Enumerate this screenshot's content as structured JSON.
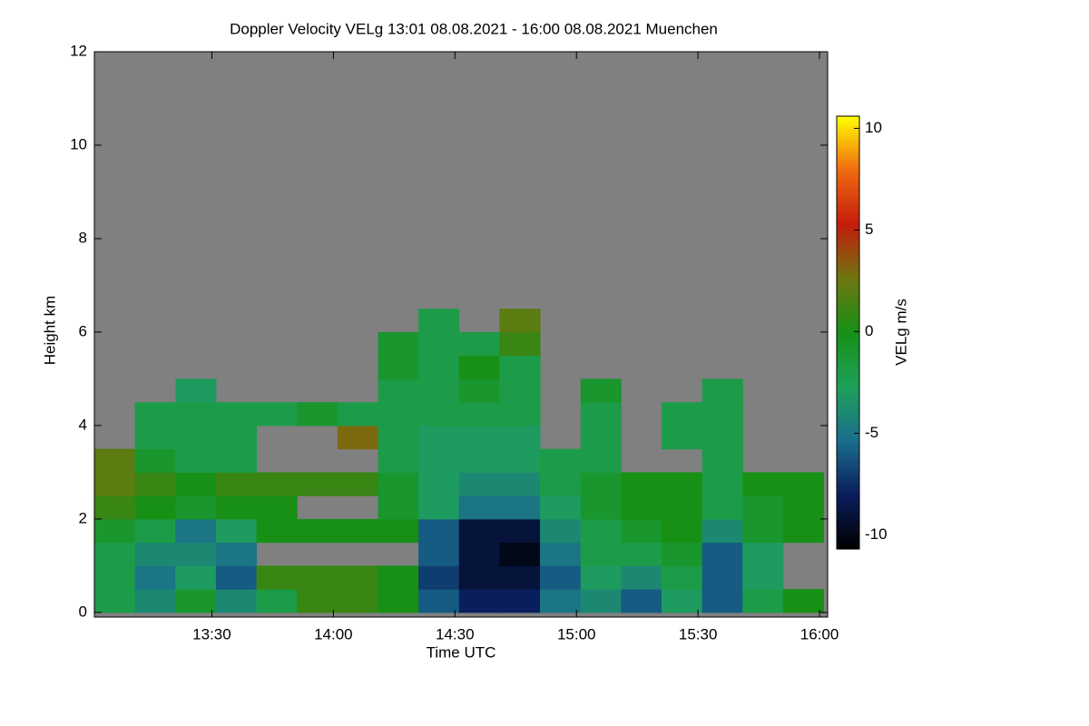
{
  "chart_data": {
    "type": "heatmap",
    "title": "Doppler Velocity VELg   13:01 08.08.2021 - 16:00 08.08.2021 Muenchen",
    "x_label": "Time UTC",
    "y_label": "Height km",
    "colorbar_label": "VELg m/s",
    "xlim": [
      "13:01",
      "16:02"
    ],
    "xticks": [
      "13:30",
      "14:00",
      "14:30",
      "15:00",
      "15:30",
      "16:00"
    ],
    "ylim": [
      -0.1,
      12
    ],
    "yticks": [
      0,
      2,
      4,
      6,
      8,
      10,
      12
    ],
    "zlim": [
      -10.7,
      10.6
    ],
    "zticks": [
      -10,
      -5,
      0,
      5,
      10
    ],
    "colormap": [
      "#000000",
      "#0a1d5c",
      "#1a6e8c",
      "#1ea05a",
      "#169016",
      "#6e7610",
      "#c41c0c",
      "#f06a10",
      "#ffff00"
    ],
    "background": "#808080",
    "x": [
      "13:06",
      "13:16",
      "13:26",
      "13:36",
      "13:46",
      "13:56",
      "14:06",
      "14:16",
      "14:26",
      "14:36",
      "14:46",
      "14:56",
      "15:06",
      "15:16",
      "15:26",
      "15:36",
      "15:46",
      "15:56"
    ],
    "y": [
      0.25,
      0.75,
      1.25,
      1.75,
      2.25,
      2.75,
      3.25,
      3.75,
      4.25,
      4.75,
      5.25,
      5.75,
      6.25,
      6.75
    ],
    "values": [
      [
        -2,
        -2,
        -2,
        -1,
        1,
        2,
        2,
        null,
        null,
        null,
        null,
        null,
        null,
        null
      ],
      [
        -4,
        -5,
        -4,
        -2,
        0,
        1,
        -1,
        -2,
        -2,
        null,
        null,
        null,
        null,
        null
      ],
      [
        -1,
        -3,
        -4,
        -5,
        -1,
        0,
        -2,
        -2,
        -2,
        -3,
        null,
        null,
        null,
        null
      ],
      [
        -4,
        -6,
        -5,
        -3,
        0,
        1,
        -2,
        -2,
        -2,
        null,
        null,
        null,
        null,
        null
      ],
      [
        -2,
        1,
        null,
        0,
        0,
        1,
        null,
        null,
        -2,
        null,
        null,
        null,
        null,
        null
      ],
      [
        1,
        1,
        null,
        0,
        null,
        1,
        null,
        null,
        -1,
        null,
        null,
        null,
        null,
        null
      ],
      [
        1,
        1,
        null,
        0,
        null,
        1,
        null,
        3,
        -2,
        null,
        null,
        null,
        null,
        null
      ],
      [
        0,
        0,
        null,
        0,
        -1,
        -1,
        -2,
        -2,
        -2,
        -2,
        -1,
        -1,
        null,
        null
      ],
      [
        -6,
        -7,
        -6,
        -6,
        -3,
        -3,
        -3,
        -3,
        -2,
        -2,
        -2,
        -2,
        -2,
        null
      ],
      [
        -8,
        -9,
        -9,
        -9,
        -5,
        -4,
        -3,
        -3,
        -2,
        -1,
        0,
        -2,
        null,
        null
      ],
      [
        -8,
        -9,
        -10,
        -9,
        -5,
        -4,
        -3,
        -3,
        -2,
        -2,
        -2,
        1,
        2,
        null
      ],
      [
        -5,
        -6,
        -5,
        -4,
        -3,
        -2,
        -2,
        null,
        null,
        null,
        null,
        null,
        null,
        null
      ],
      [
        -4,
        -3,
        -2,
        -2,
        -1,
        -1,
        -2,
        -2,
        -2,
        -1,
        null,
        null,
        null,
        null
      ],
      [
        -6,
        -4,
        -2,
        -1,
        0,
        0,
        null,
        null,
        null,
        null,
        null,
        null,
        null,
        null
      ],
      [
        -3,
        -2,
        -1,
        0,
        0,
        0,
        null,
        -2,
        -2,
        null,
        null,
        null,
        null,
        null
      ],
      [
        -6,
        -6,
        -6,
        -4,
        -2,
        -2,
        -2,
        -2,
        -2,
        -2,
        null,
        null,
        null,
        null
      ],
      [
        -2,
        -3,
        -3,
        -1,
        -1,
        0,
        null,
        null,
        null,
        null,
        null,
        null,
        null,
        null
      ],
      [
        0,
        null,
        null,
        0,
        0,
        0,
        null,
        null,
        null,
        null,
        null,
        null,
        null,
        null
      ]
    ]
  }
}
